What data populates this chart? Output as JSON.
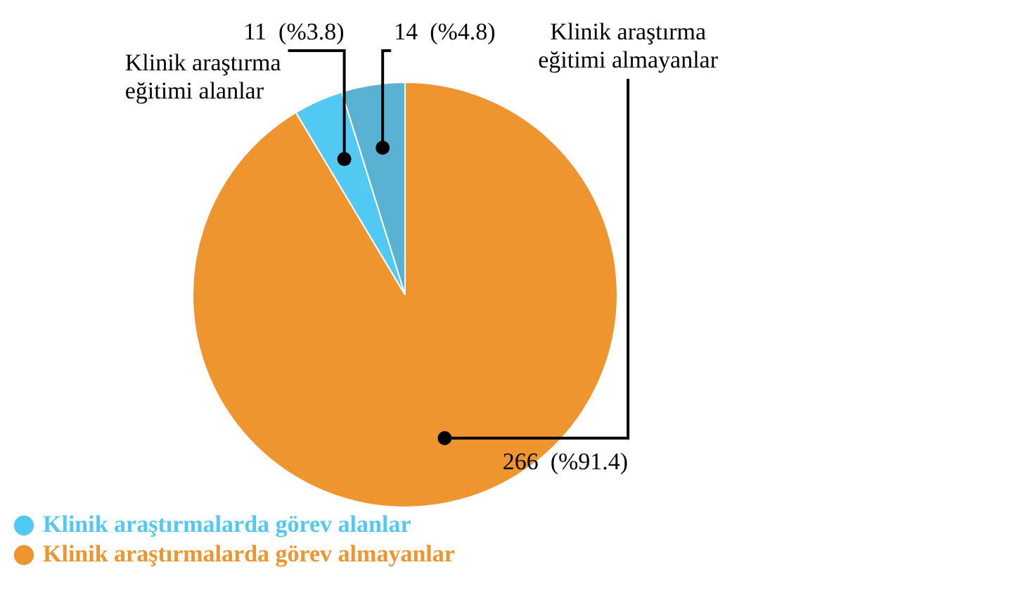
{
  "chart_data": {
    "type": "pie",
    "categories": [
      "Klinik araştırmalarda görev almayanlar",
      "Klinik araştırmalarda görev alanlar",
      null
    ],
    "values": [
      266,
      11,
      14
    ],
    "colors": [
      "#ef952f",
      "#52c9f2",
      "#5ab2d3"
    ],
    "value_labels": [
      "266  (%91.4)",
      "11  (%3.8)",
      "14  (%4.8)"
    ],
    "annotations": [
      {
        "text": "Klinik araştırma eğitimi alanlar",
        "x": "Klinik araştırmalarda görev alanlar"
      },
      {
        "text": "Klinik araştırma eğitimi almayanlar",
        "x": "Klinik araştırmalarda görev almayanlar"
      }
    ],
    "legend": "bottom left"
  }
}
